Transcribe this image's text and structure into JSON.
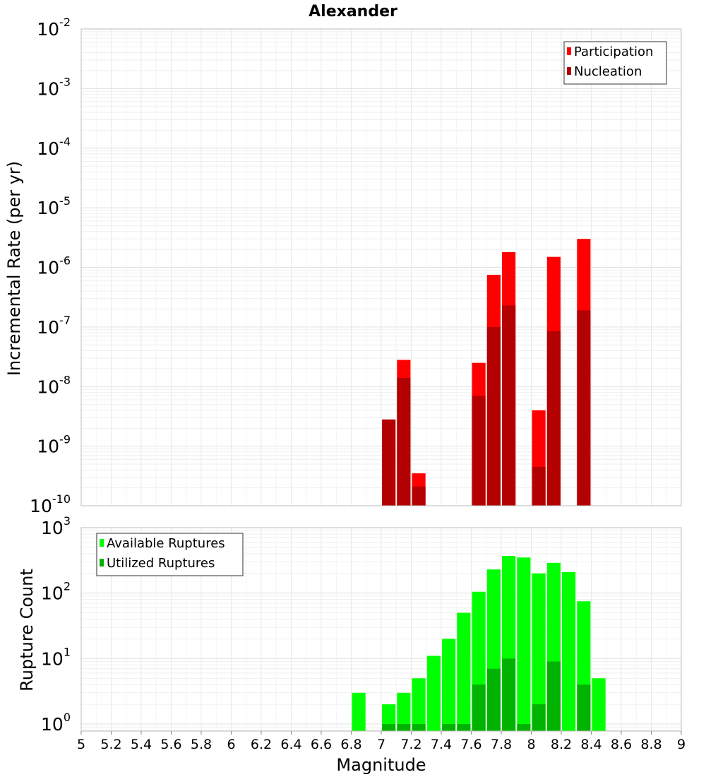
{
  "chart_data": [
    {
      "type": "bar",
      "title": "Alexander",
      "xlabel": "Magnitude",
      "ylabel": "Incremental Rate (per yr)",
      "ylog": true,
      "ylim": [
        1e-10,
        0.01
      ],
      "ytick_labels": [
        {
          "base": "10",
          "exp": "-2"
        },
        {
          "base": "10",
          "exp": "-3"
        },
        {
          "base": "10",
          "exp": "-4"
        },
        {
          "base": "10",
          "exp": "-5"
        },
        {
          "base": "10",
          "exp": "-6"
        },
        {
          "base": "10",
          "exp": "-7"
        },
        {
          "base": "10",
          "exp": "-8"
        },
        {
          "base": "10",
          "exp": "-9"
        },
        {
          "base": "10",
          "exp": "-10"
        }
      ],
      "xlim": [
        5,
        9
      ],
      "grid": true,
      "legend": {
        "placement": "top-right",
        "entries": [
          {
            "label": "Participation",
            "color": "#ff0000"
          },
          {
            "label": "Nucleation",
            "color": "#b30000"
          }
        ]
      },
      "series": [
        {
          "name": "Participation",
          "color": "#ff0000",
          "x": [
            7.05,
            7.15,
            7.25,
            7.65,
            7.75,
            7.85,
            8.05,
            8.15,
            8.35
          ],
          "values": [
            2.8e-09,
            2.8e-08,
            3.5e-10,
            2.5e-08,
            7.5e-07,
            1.8e-06,
            4e-09,
            1.5e-06,
            3e-06
          ]
        },
        {
          "name": "Nucleation",
          "color": "#b30000",
          "x": [
            7.05,
            7.15,
            7.25,
            7.65,
            7.75,
            7.85,
            8.05,
            8.15,
            8.35
          ],
          "values": [
            2.8e-09,
            1.4e-08,
            2.1e-10,
            7e-09,
            1e-07,
            2.3e-07,
            4.5e-10,
            8.5e-08,
            1.9e-07
          ]
        }
      ]
    },
    {
      "type": "bar",
      "xlabel": "Magnitude",
      "ylabel": "Rupture Count",
      "ylog": true,
      "ylim": [
        0.78,
        1000
      ],
      "ytick_labels": [
        {
          "base": "10",
          "exp": "3"
        },
        {
          "base": "10",
          "exp": "2"
        },
        {
          "base": "10",
          "exp": "1"
        },
        {
          "base": "10",
          "exp": "0"
        }
      ],
      "xlim": [
        5,
        9
      ],
      "xtick_labels": [
        "5",
        "5.2",
        "5.4",
        "5.6",
        "5.8",
        "6",
        "6.2",
        "6.4",
        "6.6",
        "6.8",
        "7",
        "7.2",
        "7.4",
        "7.6",
        "7.8",
        "8",
        "8.2",
        "8.4",
        "8.6",
        "8.8",
        "9"
      ],
      "grid": true,
      "legend": {
        "placement": "top-left",
        "entries": [
          {
            "label": "Available Ruptures",
            "color": "#00ff00"
          },
          {
            "label": "Utilized Ruptures",
            "color": "#00b300"
          }
        ]
      },
      "series": [
        {
          "name": "Available Ruptures",
          "color": "#00ff00",
          "x": [
            6.85,
            7.05,
            7.15,
            7.25,
            7.35,
            7.45,
            7.55,
            7.65,
            7.75,
            7.85,
            7.95,
            8.05,
            8.15,
            8.25,
            8.35,
            8.45
          ],
          "values": [
            3,
            2,
            3,
            5,
            11,
            20,
            50,
            105,
            230,
            370,
            350,
            200,
            290,
            210,
            75,
            5
          ]
        },
        {
          "name": "Utilized Ruptures",
          "color": "#00b300",
          "x": [
            7.05,
            7.15,
            7.25,
            7.45,
            7.55,
            7.65,
            7.75,
            7.85,
            7.95,
            8.05,
            8.15,
            8.35
          ],
          "values": [
            1,
            1,
            1,
            1,
            1,
            4,
            7,
            10,
            1,
            2,
            9,
            4
          ]
        }
      ]
    }
  ]
}
